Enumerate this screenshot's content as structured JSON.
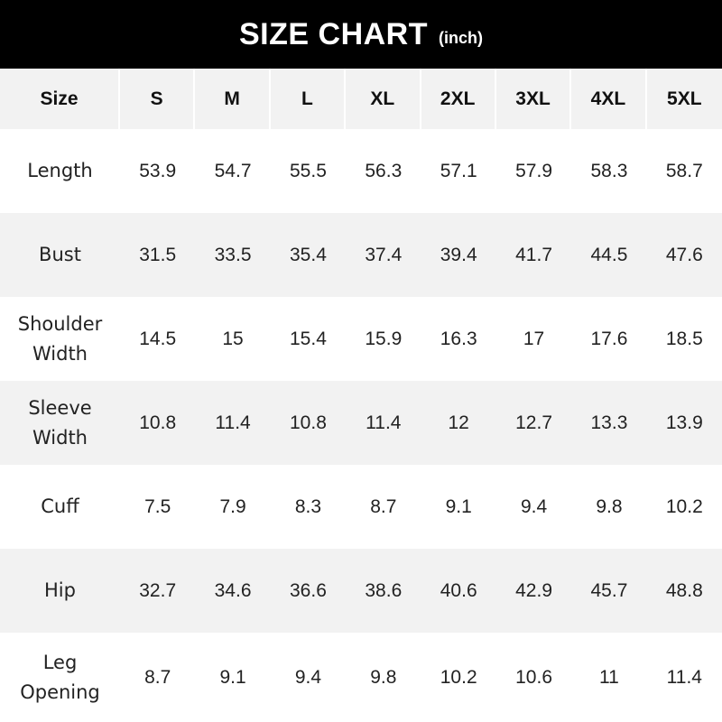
{
  "title": {
    "main": "SIZE CHART",
    "unit": "(inch)"
  },
  "header": [
    "Size",
    "S",
    "M",
    "L",
    "XL",
    "2XL",
    "3XL",
    "4XL",
    "5XL"
  ],
  "rows": [
    {
      "label": [
        "Length"
      ],
      "values": [
        "53.9",
        "54.7",
        "55.5",
        "56.3",
        "57.1",
        "57.9",
        "58.3",
        "58.7"
      ]
    },
    {
      "label": [
        "Bust"
      ],
      "values": [
        "31.5",
        "33.5",
        "35.4",
        "37.4",
        "39.4",
        "41.7",
        "44.5",
        "47.6"
      ]
    },
    {
      "label": [
        "Shoulder",
        "Width"
      ],
      "values": [
        "14.5",
        "15",
        "15.4",
        "15.9",
        "16.3",
        "17",
        "17.6",
        "18.5"
      ]
    },
    {
      "label": [
        "Sleeve",
        "Width"
      ],
      "values": [
        "10.8",
        "11.4",
        "10.8",
        "11.4",
        "12",
        "12.7",
        "13.3",
        "13.9"
      ]
    },
    {
      "label": [
        "Cuff"
      ],
      "values": [
        "7.5",
        "7.9",
        "8.3",
        "8.7",
        "9.1",
        "9.4",
        "9.8",
        "10.2"
      ]
    },
    {
      "label": [
        "Hip"
      ],
      "values": [
        "32.7",
        "34.6",
        "36.6",
        "38.6",
        "40.6",
        "42.9",
        "45.7",
        "48.8"
      ]
    },
    {
      "label": [
        "Leg",
        "Opening"
      ],
      "values": [
        "8.7",
        "9.1",
        "9.4",
        "9.8",
        "10.2",
        "10.6",
        "11",
        "11.4"
      ]
    }
  ],
  "colors": {
    "title_bg": "#000000",
    "stripe": "#f2f2f2",
    "text": "#1a1a1a"
  }
}
